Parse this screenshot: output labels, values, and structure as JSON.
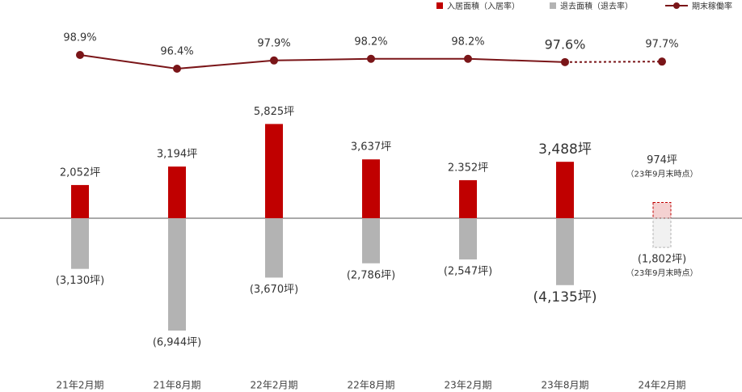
{
  "chart_data": {
    "type": "combo",
    "categories": [
      "21年2月期",
      "21年8月期",
      "22年2月期",
      "22年8月期",
      "23年2月期",
      "23年8月期",
      "24年2月期"
    ],
    "series": [
      {
        "name": "入居面積（入居率）",
        "type": "bar",
        "color": "#c00000",
        "values": [
          2052,
          3194,
          5825,
          3637,
          2352,
          3488,
          974
        ],
        "value_labels": [
          "2,052坪",
          "3,194坪",
          "5,825坪",
          "3,637坪",
          "2.352坪",
          "3,488坪",
          "974坪"
        ]
      },
      {
        "name": "退去面積（退去率）",
        "type": "bar",
        "color": "#b3b3b3",
        "values": [
          -3130,
          -6944,
          -3670,
          -2786,
          -2547,
          -4135,
          -1802
        ],
        "value_labels": [
          "(3,130坪)",
          "(6,944坪)",
          "(3,670坪)",
          "(2,786坪)",
          "(2,547坪)",
          "(4,135坪)",
          "(1,802坪)"
        ]
      },
      {
        "name": "期末稼働率",
        "type": "line",
        "color": "#7a1518",
        "values": [
          98.9,
          96.4,
          97.9,
          98.2,
          98.2,
          97.6,
          97.7
        ],
        "value_labels": [
          "98.9%",
          "96.4%",
          "97.9%",
          "98.2%",
          "98.2%",
          "97.6%",
          "97.7%"
        ]
      }
    ],
    "annotations": [
      "（23年9月末時点）",
      "（23年9月末時点）"
    ]
  }
}
